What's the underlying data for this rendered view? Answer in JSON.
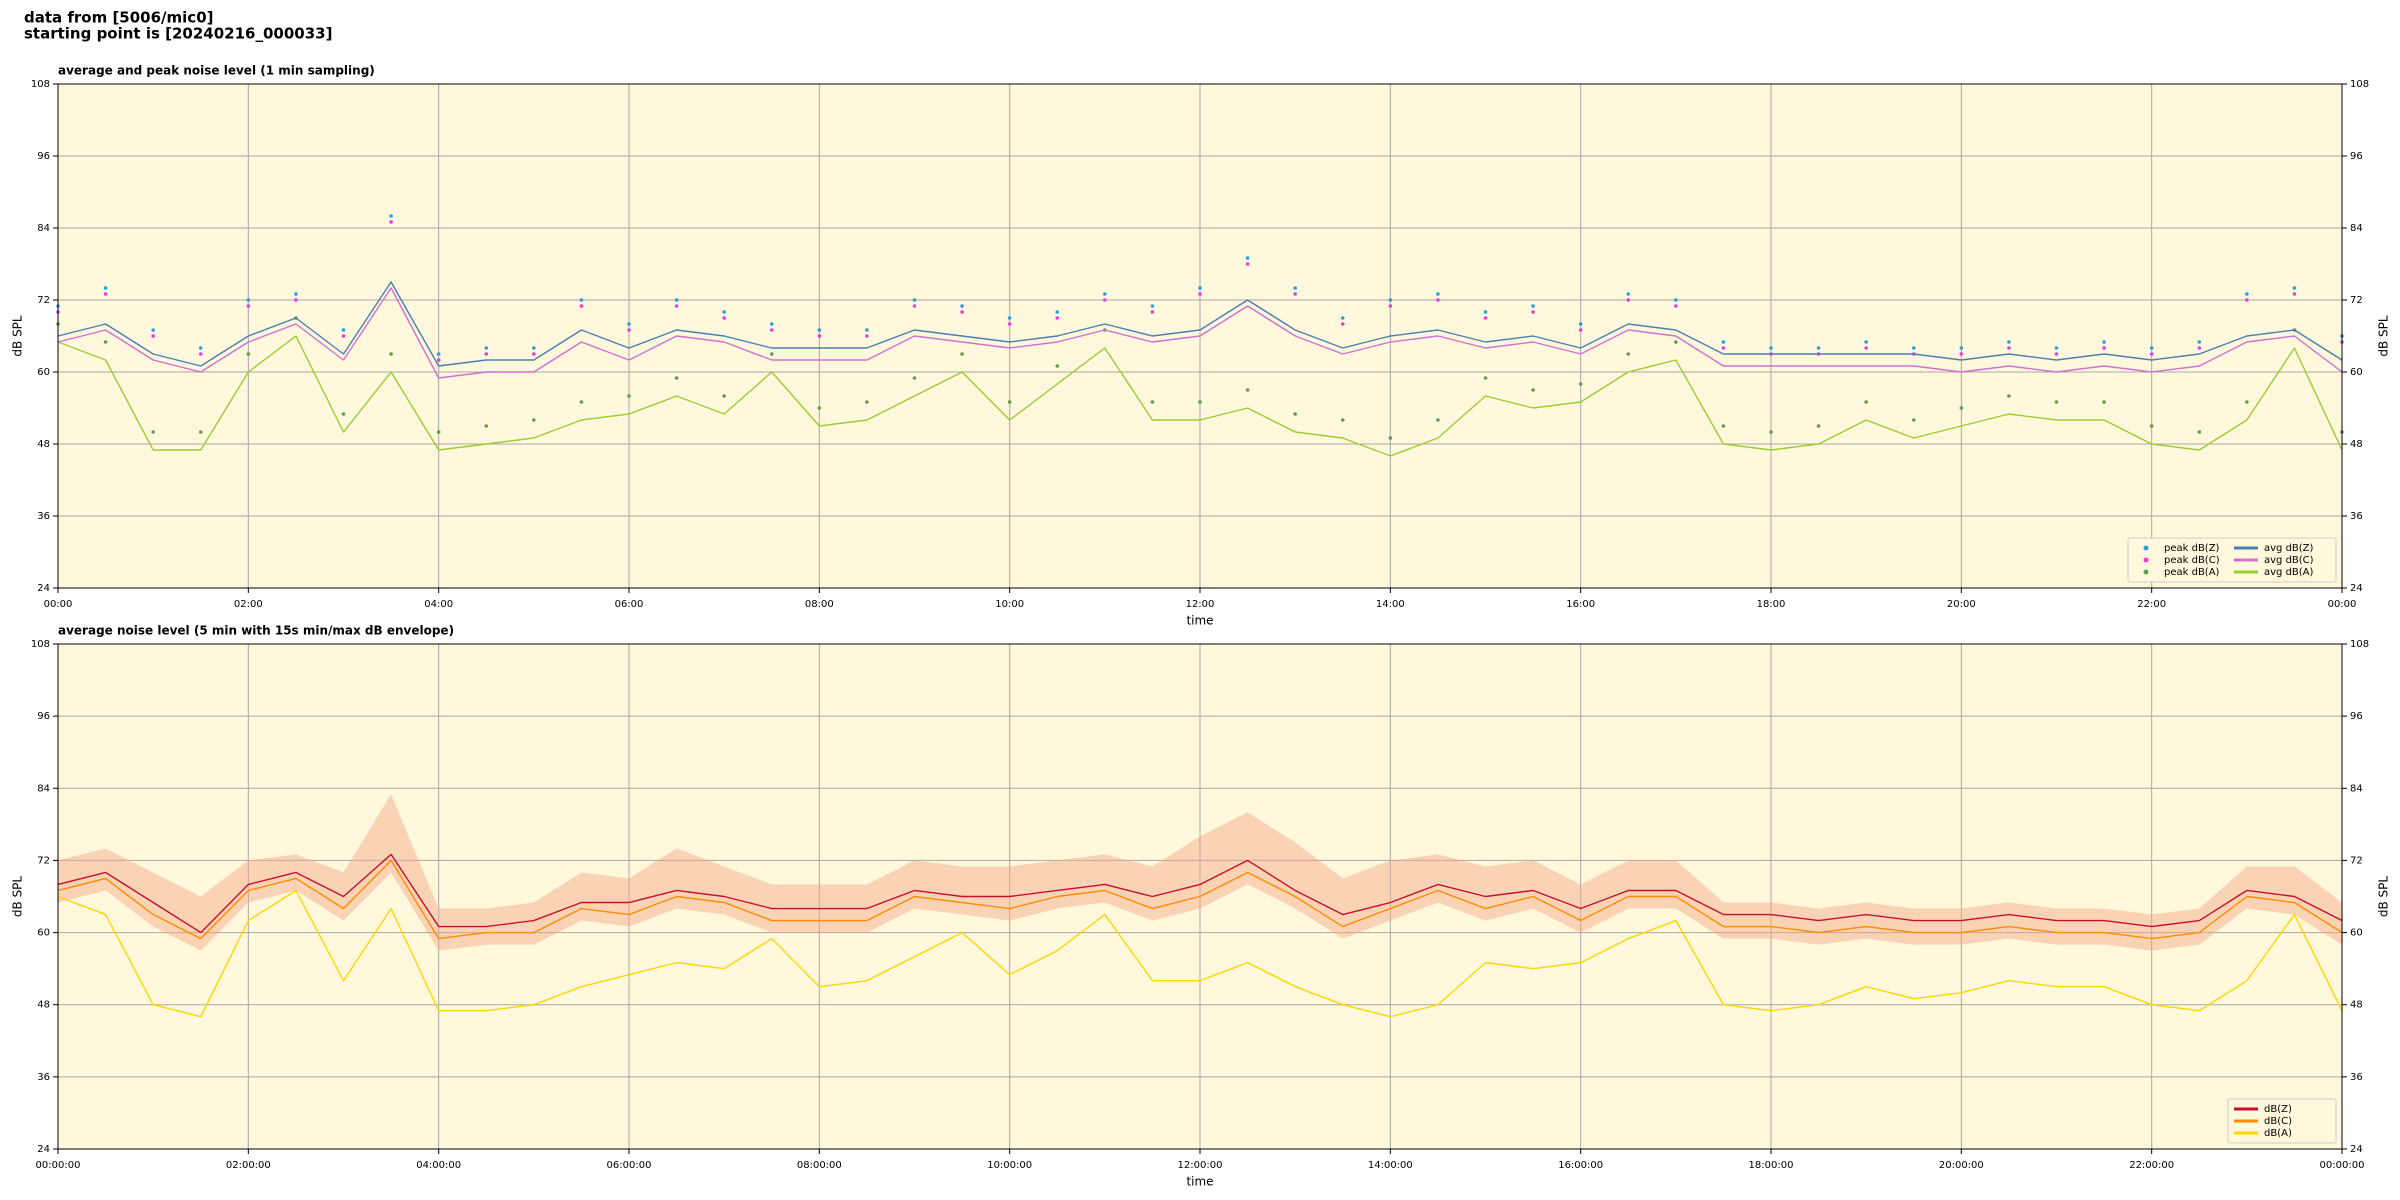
{
  "header": [
    "data from [5006/mic0]",
    "starting point is [20240216_000033]"
  ],
  "chart_data": [
    {
      "type": "line",
      "title": "average and peak noise level (1 min sampling)",
      "xlabel": "time",
      "ylabel": "dB SPL",
      "x": [
        0,
        0.5,
        1,
        1.5,
        2,
        2.5,
        3,
        3.5,
        4,
        4.5,
        5,
        5.5,
        6,
        6.5,
        7,
        7.5,
        8,
        8.5,
        9,
        9.5,
        10,
        10.5,
        11,
        11.5,
        12,
        12.5,
        13,
        13.5,
        14,
        14.5,
        15,
        15.5,
        16,
        16.5,
        17,
        17.5,
        18,
        18.5,
        19,
        19.5,
        20,
        20.5,
        21,
        21.5,
        22,
        22.5,
        23,
        23.5,
        24
      ],
      "xlim": [
        0,
        24
      ],
      "xticks": [
        {
          "value": 0,
          "label": "00:00"
        },
        {
          "value": 2,
          "label": "02:00"
        },
        {
          "value": 4,
          "label": "04:00"
        },
        {
          "value": 6,
          "label": "06:00"
        },
        {
          "value": 8,
          "label": "08:00"
        },
        {
          "value": 10,
          "label": "10:00"
        },
        {
          "value": 12,
          "label": "12:00"
        },
        {
          "value": 14,
          "label": "14:00"
        },
        {
          "value": 16,
          "label": "16:00"
        },
        {
          "value": 18,
          "label": "18:00"
        },
        {
          "value": 20,
          "label": "20:00"
        },
        {
          "value": 22,
          "label": "22:00"
        },
        {
          "value": 24,
          "label": "00:00"
        }
      ],
      "ylim": [
        24,
        108
      ],
      "yticks": [
        24,
        36,
        48,
        60,
        72,
        84,
        96,
        108
      ],
      "grid": true,
      "legend": "lower right",
      "legend_columns": 2,
      "series": [
        {
          "name": "peak dB(Z)",
          "style": "scatter",
          "color": "#2a9fe0",
          "values": [
            71,
            74,
            67,
            64,
            72,
            73,
            67,
            86,
            63,
            64,
            64,
            72,
            68,
            72,
            70,
            68,
            67,
            67,
            72,
            71,
            69,
            70,
            73,
            71,
            74,
            79,
            74,
            69,
            72,
            73,
            70,
            71,
            68,
            73,
            72,
            65,
            64,
            64,
            65,
            64,
            64,
            65,
            64,
            65,
            64,
            65,
            73,
            74,
            66
          ]
        },
        {
          "name": "peak dB(C)",
          "style": "scatter",
          "color": "#e040e0",
          "values": [
            70,
            73,
            66,
            63,
            71,
            72,
            66,
            85,
            62,
            63,
            63,
            71,
            67,
            71,
            69,
            67,
            66,
            66,
            71,
            70,
            68,
            69,
            72,
            70,
            73,
            78,
            73,
            68,
            71,
            72,
            69,
            70,
            67,
            72,
            71,
            64,
            63,
            63,
            64,
            63,
            63,
            64,
            63,
            64,
            63,
            64,
            72,
            73,
            65
          ]
        },
        {
          "name": "peak dB(A)",
          "style": "scatter",
          "color": "#5f9e4a",
          "values": [
            68,
            65,
            50,
            50,
            63,
            69,
            53,
            63,
            50,
            51,
            52,
            55,
            56,
            59,
            56,
            63,
            54,
            55,
            59,
            63,
            55,
            61,
            67,
            55,
            55,
            57,
            53,
            52,
            49,
            52,
            59,
            57,
            58,
            63,
            65,
            51,
            50,
            51,
            55,
            52,
            54,
            56,
            55,
            55,
            51,
            50,
            55,
            67,
            50
          ]
        },
        {
          "name": "avg dB(Z)",
          "style": "line",
          "color": "#4a7fb0",
          "values": [
            66,
            68,
            63,
            61,
            66,
            69,
            63,
            75,
            61,
            62,
            62,
            67,
            64,
            67,
            66,
            64,
            64,
            64,
            67,
            66,
            65,
            66,
            68,
            66,
            67,
            72,
            67,
            64,
            66,
            67,
            65,
            66,
            64,
            68,
            67,
            63,
            63,
            63,
            63,
            63,
            62,
            63,
            62,
            63,
            62,
            63,
            66,
            67,
            62
          ]
        },
        {
          "name": "avg dB(C)",
          "style": "line",
          "color": "#d070d0",
          "values": [
            65,
            67,
            62,
            60,
            65,
            68,
            62,
            74,
            59,
            60,
            60,
            65,
            62,
            66,
            65,
            62,
            62,
            62,
            66,
            65,
            64,
            65,
            67,
            65,
            66,
            71,
            66,
            63,
            65,
            66,
            64,
            65,
            63,
            67,
            66,
            61,
            61,
            61,
            61,
            61,
            60,
            61,
            60,
            61,
            60,
            61,
            65,
            66,
            60
          ]
        },
        {
          "name": "avg dB(A)",
          "style": "line",
          "color": "#9acd32",
          "values": [
            65,
            62,
            47,
            47,
            60,
            66,
            50,
            60,
            47,
            48,
            49,
            52,
            53,
            56,
            53,
            60,
            51,
            52,
            56,
            60,
            52,
            58,
            64,
            52,
            52,
            54,
            50,
            49,
            46,
            49,
            56,
            54,
            55,
            60,
            62,
            48,
            47,
            48,
            52,
            49,
            51,
            53,
            52,
            52,
            48,
            47,
            52,
            64,
            47
          ]
        }
      ]
    },
    {
      "type": "line",
      "title": "average noise level (5 min with 15s min/max dB envelope)",
      "xlabel": "time",
      "ylabel": "dB SPL",
      "x": [
        0,
        0.5,
        1,
        1.5,
        2,
        2.5,
        3,
        3.5,
        4,
        4.5,
        5,
        5.5,
        6,
        6.5,
        7,
        7.5,
        8,
        8.5,
        9,
        9.5,
        10,
        10.5,
        11,
        11.5,
        12,
        12.5,
        13,
        13.5,
        14,
        14.5,
        15,
        15.5,
        16,
        16.5,
        17,
        17.5,
        18,
        18.5,
        19,
        19.5,
        20,
        20.5,
        21,
        21.5,
        22,
        22.5,
        23,
        23.5,
        24
      ],
      "xlim": [
        0,
        24
      ],
      "xticks": [
        {
          "value": 0,
          "label": "00:00:00"
        },
        {
          "value": 2,
          "label": "02:00:00"
        },
        {
          "value": 4,
          "label": "04:00:00"
        },
        {
          "value": 6,
          "label": "06:00:00"
        },
        {
          "value": 8,
          "label": "08:00:00"
        },
        {
          "value": 10,
          "label": "10:00:00"
        },
        {
          "value": 12,
          "label": "12:00:00"
        },
        {
          "value": 14,
          "label": "14:00:00"
        },
        {
          "value": 16,
          "label": "16:00:00"
        },
        {
          "value": 18,
          "label": "18:00:00"
        },
        {
          "value": 20,
          "label": "20:00:00"
        },
        {
          "value": 22,
          "label": "22:00:00"
        },
        {
          "value": 24,
          "label": "00:00:00"
        }
      ],
      "ylim": [
        24,
        108
      ],
      "yticks": [
        24,
        36,
        48,
        60,
        72,
        84,
        96,
        108
      ],
      "grid": true,
      "legend": "lower right",
      "legend_columns": 1,
      "envelope": {
        "color": "#f4a582",
        "low": [
          65,
          67,
          61,
          57,
          65,
          67,
          62,
          70,
          57,
          58,
          58,
          62,
          61,
          64,
          63,
          60,
          60,
          60,
          64,
          63,
          62,
          64,
          65,
          62,
          64,
          68,
          64,
          59,
          62,
          65,
          62,
          64,
          60,
          64,
          64,
          59,
          59,
          58,
          59,
          58,
          58,
          59,
          58,
          58,
          57,
          58,
          64,
          63,
          58
        ],
        "high": [
          72,
          74,
          70,
          66,
          72,
          73,
          70,
          83,
          64,
          64,
          65,
          70,
          69,
          74,
          71,
          68,
          68,
          68,
          72,
          71,
          71,
          72,
          73,
          71,
          76,
          80,
          75,
          69,
          72,
          73,
          71,
          72,
          68,
          72,
          72,
          65,
          65,
          64,
          65,
          64,
          64,
          65,
          64,
          64,
          63,
          64,
          71,
          71,
          65
        ]
      },
      "series": [
        {
          "name": "dB(Z)",
          "style": "line",
          "color": "#c8102e",
          "values": [
            68,
            70,
            65,
            60,
            68,
            70,
            66,
            73,
            61,
            61,
            62,
            65,
            65,
            67,
            66,
            64,
            64,
            64,
            67,
            66,
            66,
            67,
            68,
            66,
            68,
            72,
            67,
            63,
            65,
            68,
            66,
            67,
            64,
            67,
            67,
            63,
            63,
            62,
            63,
            62,
            62,
            63,
            62,
            62,
            61,
            62,
            67,
            66,
            62
          ]
        },
        {
          "name": "dB(C)",
          "style": "line",
          "color": "#ff8c00",
          "values": [
            67,
            69,
            63,
            59,
            67,
            69,
            64,
            72,
            59,
            60,
            60,
            64,
            63,
            66,
            65,
            62,
            62,
            62,
            66,
            65,
            64,
            66,
            67,
            64,
            66,
            70,
            66,
            61,
            64,
            67,
            64,
            66,
            62,
            66,
            66,
            61,
            61,
            60,
            61,
            60,
            60,
            61,
            60,
            60,
            59,
            60,
            66,
            65,
            60
          ]
        },
        {
          "name": "dB(A)",
          "style": "line",
          "color": "#ffd700",
          "values": [
            66,
            63,
            48,
            46,
            62,
            67,
            52,
            64,
            47,
            47,
            48,
            51,
            53,
            55,
            54,
            59,
            51,
            52,
            56,
            60,
            53,
            57,
            63,
            52,
            52,
            55,
            51,
            48,
            46,
            48,
            55,
            54,
            55,
            59,
            62,
            48,
            47,
            48,
            51,
            49,
            50,
            52,
            51,
            51,
            48,
            47,
            52,
            63,
            47
          ]
        }
      ]
    }
  ]
}
